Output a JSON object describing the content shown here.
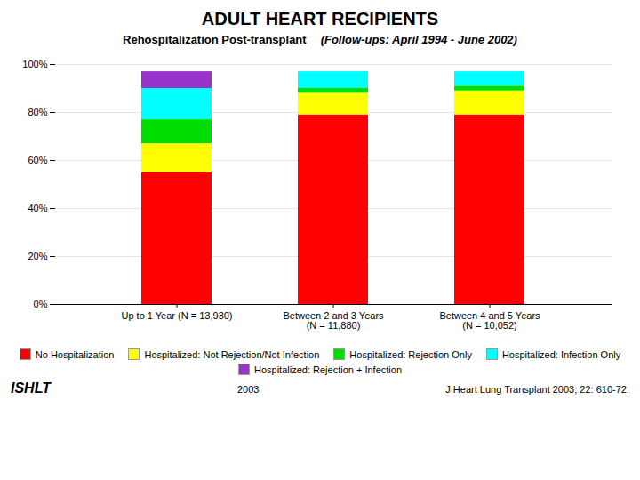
{
  "chart_data": {
    "type": "bar",
    "stacked": true,
    "grid": true,
    "title": "ADULT HEART RECIPIENTS",
    "subtitle": [
      "Rehospitalization Post-transplant",
      "(Follow-ups: April 1994 - June 2002)"
    ],
    "categories": [
      "Up to 1 Year (N = 13,930)",
      "Between 2 and 3 Years\n(N = 11,880)",
      "Between 4 and 5 Years\n(N = 10,052)"
    ],
    "series": [
      {
        "name": "No Hospitalization",
        "color": "#ff0000",
        "values": [
          55,
          79,
          79
        ]
      },
      {
        "name": "Hospitalized: Not Rejection/Not Infection",
        "color": "#ffff00",
        "values": [
          12,
          9,
          10
        ]
      },
      {
        "name": "Hospitalized: Rejection Only",
        "color": "#00dd00",
        "values": [
          10,
          2,
          2
        ]
      },
      {
        "name": "Hospitalized: Infection Only",
        "color": "#00ffff",
        "values": [
          13,
          7,
          6
        ]
      },
      {
        "name": "Hospitalized: Rejection + Infection",
        "color": "#9933cc",
        "values": [
          7,
          0,
          0
        ]
      }
    ],
    "ylim": [
      0,
      100
    ],
    "yticks": [
      {
        "value": 0,
        "label": "0%"
      },
      {
        "value": 20,
        "label": "20%"
      },
      {
        "value": 40,
        "label": "40%"
      },
      {
        "value": 60,
        "label": "60%"
      },
      {
        "value": 80,
        "label": "80%"
      },
      {
        "value": 100,
        "label": "100%"
      }
    ],
    "annotations": [
      "ISHLT",
      "2003",
      "J Heart Lung Transplant 2003; 22: 610-72."
    ]
  }
}
